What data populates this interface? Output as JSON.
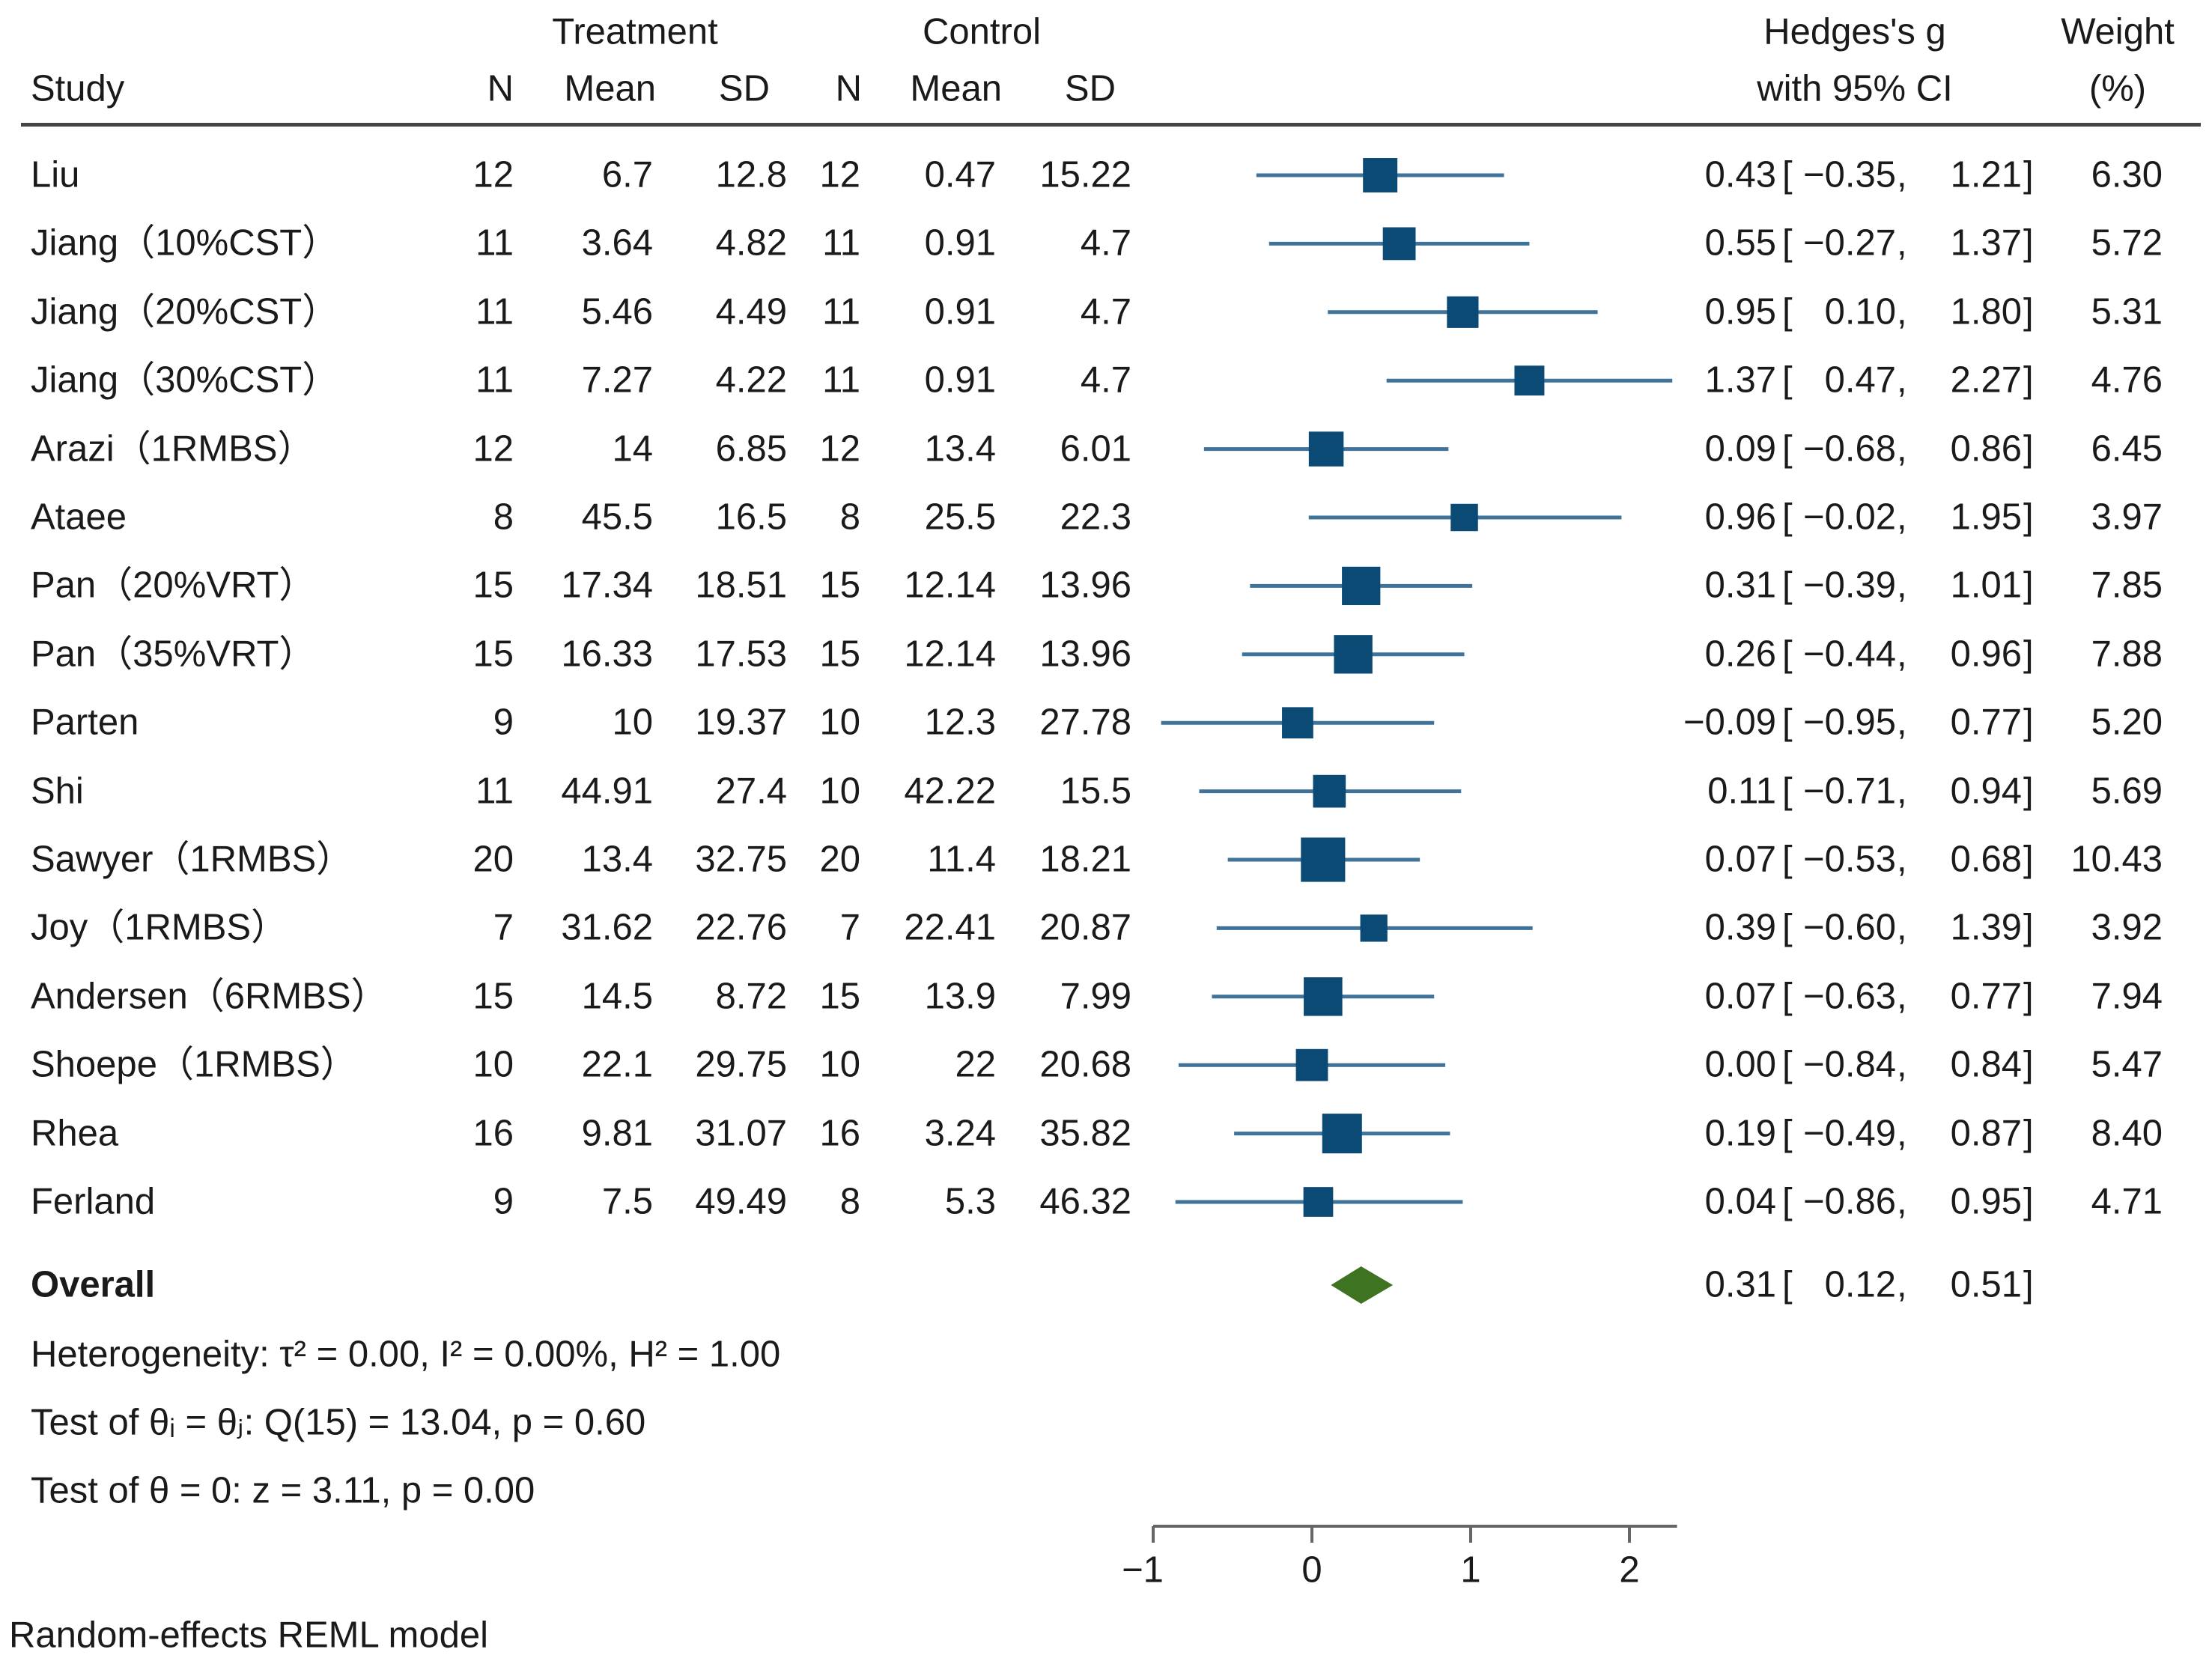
{
  "chart_data": {
    "type": "forest",
    "headers": {
      "treatment": "Treatment",
      "control": "Control",
      "study": "Study",
      "n": "N",
      "mean": "Mean",
      "sd": "SD",
      "effect_line1": "Hedges's g",
      "effect_line2": "with 95% CI",
      "weight_line1": "Weight",
      "weight_line2": "(%)"
    },
    "studies": [
      {
        "name": "Liu",
        "t_n": "12",
        "t_mean": "6.7",
        "t_sd": "12.8",
        "c_n": "12",
        "c_mean": "0.47",
        "c_sd": "15.22",
        "g": 0.43,
        "lo": -0.35,
        "hi": 1.21,
        "g_text": "0.43",
        "lo_text": "−0.35",
        "hi_text": "1.21",
        "weight": 6.3,
        "weight_text": "6.30"
      },
      {
        "name": "Jiang（10%CST）",
        "t_n": "11",
        "t_mean": "3.64",
        "t_sd": "4.82",
        "c_n": "11",
        "c_mean": "0.91",
        "c_sd": "4.7",
        "g": 0.55,
        "lo": -0.27,
        "hi": 1.37,
        "g_text": "0.55",
        "lo_text": "−0.27",
        "hi_text": "1.37",
        "weight": 5.72,
        "weight_text": "5.72"
      },
      {
        "name": "Jiang（20%CST）",
        "t_n": "11",
        "t_mean": "5.46",
        "t_sd": "4.49",
        "c_n": "11",
        "c_mean": "0.91",
        "c_sd": "4.7",
        "g": 0.95,
        "lo": 0.1,
        "hi": 1.8,
        "g_text": "0.95",
        "lo_text": "0.10",
        "hi_text": "1.80",
        "weight": 5.31,
        "weight_text": "5.31"
      },
      {
        "name": "Jiang（30%CST）",
        "t_n": "11",
        "t_mean": "7.27",
        "t_sd": "4.22",
        "c_n": "11",
        "c_mean": "0.91",
        "c_sd": "4.7",
        "g": 1.37,
        "lo": 0.47,
        "hi": 2.27,
        "g_text": "1.37",
        "lo_text": "0.47",
        "hi_text": "2.27",
        "weight": 4.76,
        "weight_text": "4.76"
      },
      {
        "name": "Arazi（1RMBS）",
        "t_n": "12",
        "t_mean": "14",
        "t_sd": "6.85",
        "c_n": "12",
        "c_mean": "13.4",
        "c_sd": "6.01",
        "g": 0.09,
        "lo": -0.68,
        "hi": 0.86,
        "g_text": "0.09",
        "lo_text": "−0.68",
        "hi_text": "0.86",
        "weight": 6.45,
        "weight_text": "6.45"
      },
      {
        "name": "Ataee",
        "t_n": "8",
        "t_mean": "45.5",
        "t_sd": "16.5",
        "c_n": "8",
        "c_mean": "25.5",
        "c_sd": "22.3",
        "g": 0.96,
        "lo": -0.02,
        "hi": 1.95,
        "g_text": "0.96",
        "lo_text": "−0.02",
        "hi_text": "1.95",
        "weight": 3.97,
        "weight_text": "3.97"
      },
      {
        "name": "Pan（20%VRT）",
        "t_n": "15",
        "t_mean": "17.34",
        "t_sd": "18.51",
        "c_n": "15",
        "c_mean": "12.14",
        "c_sd": "13.96",
        "g": 0.31,
        "lo": -0.39,
        "hi": 1.01,
        "g_text": "0.31",
        "lo_text": "−0.39",
        "hi_text": "1.01",
        "weight": 7.85,
        "weight_text": "7.85"
      },
      {
        "name": "Pan（35%VRT）",
        "t_n": "15",
        "t_mean": "16.33",
        "t_sd": "17.53",
        "c_n": "15",
        "c_mean": "12.14",
        "c_sd": "13.96",
        "g": 0.26,
        "lo": -0.44,
        "hi": 0.96,
        "g_text": "0.26",
        "lo_text": "−0.44",
        "hi_text": "0.96",
        "weight": 7.88,
        "weight_text": "7.88"
      },
      {
        "name": "Parten",
        "t_n": "9",
        "t_mean": "10",
        "t_sd": "19.37",
        "c_n": "10",
        "c_mean": "12.3",
        "c_sd": "27.78",
        "g": -0.09,
        "lo": -0.95,
        "hi": 0.77,
        "g_text": "−0.09",
        "lo_text": "−0.95",
        "hi_text": "0.77",
        "weight": 5.2,
        "weight_text": "5.20"
      },
      {
        "name": "Shi",
        "t_n": "11",
        "t_mean": "44.91",
        "t_sd": "27.4",
        "c_n": "10",
        "c_mean": "42.22",
        "c_sd": "15.5",
        "g": 0.11,
        "lo": -0.71,
        "hi": 0.94,
        "g_text": "0.11",
        "lo_text": "−0.71",
        "hi_text": "0.94",
        "weight": 5.69,
        "weight_text": "5.69"
      },
      {
        "name": "Sawyer（1RMBS）",
        "t_n": "20",
        "t_mean": "13.4",
        "t_sd": "32.75",
        "c_n": "20",
        "c_mean": "11.4",
        "c_sd": "18.21",
        "g": 0.07,
        "lo": -0.53,
        "hi": 0.68,
        "g_text": "0.07",
        "lo_text": "−0.53",
        "hi_text": "0.68",
        "weight": 10.43,
        "weight_text": "10.43"
      },
      {
        "name": "Joy（1RMBS）",
        "t_n": "7",
        "t_mean": "31.62",
        "t_sd": "22.76",
        "c_n": "7",
        "c_mean": "22.41",
        "c_sd": "20.87",
        "g": 0.39,
        "lo": -0.6,
        "hi": 1.39,
        "g_text": "0.39",
        "lo_text": "−0.60",
        "hi_text": "1.39",
        "weight": 3.92,
        "weight_text": "3.92"
      },
      {
        "name": "Andersen（6RMBS）",
        "t_n": "15",
        "t_mean": "14.5",
        "t_sd": "8.72",
        "c_n": "15",
        "c_mean": "13.9",
        "c_sd": "7.99",
        "g": 0.07,
        "lo": -0.63,
        "hi": 0.77,
        "g_text": "0.07",
        "lo_text": "−0.63",
        "hi_text": "0.77",
        "weight": 7.94,
        "weight_text": "7.94"
      },
      {
        "name": "Shoepe（1RMBS）",
        "t_n": "10",
        "t_mean": "22.1",
        "t_sd": "29.75",
        "c_n": "10",
        "c_mean": "22",
        "c_sd": "20.68",
        "g": 0.0,
        "lo": -0.84,
        "hi": 0.84,
        "g_text": "0.00",
        "lo_text": "−0.84",
        "hi_text": "0.84",
        "weight": 5.47,
        "weight_text": "5.47"
      },
      {
        "name": "Rhea",
        "t_n": "16",
        "t_mean": "9.81",
        "t_sd": "31.07",
        "c_n": "16",
        "c_mean": "3.24",
        "c_sd": "35.82",
        "g": 0.19,
        "lo": -0.49,
        "hi": 0.87,
        "g_text": "0.19",
        "lo_text": "−0.49",
        "hi_text": "0.87",
        "weight": 8.4,
        "weight_text": "8.40"
      },
      {
        "name": "Ferland",
        "t_n": "9",
        "t_mean": "7.5",
        "t_sd": "49.49",
        "c_n": "8",
        "c_mean": "5.3",
        "c_sd": "46.32",
        "g": 0.04,
        "lo": -0.86,
        "hi": 0.95,
        "g_text": "0.04",
        "lo_text": "−0.86",
        "hi_text": "0.95",
        "weight": 4.71,
        "weight_text": "4.71"
      }
    ],
    "overall": {
      "label": "Overall",
      "g": 0.31,
      "lo": 0.12,
      "hi": 0.51,
      "g_text": "0.31",
      "lo_text": "0.12",
      "hi_text": "0.51"
    },
    "stats": {
      "heterogeneity": "Heterogeneity: τ² = 0.00, I² = 0.00%, H² = 1.00",
      "test_homogeneity": "Test of θᵢ = θⱼ: Q(15) = 13.04, p = 0.60",
      "test_effect": "Test of θ = 0: z = 3.11, p = 0.00"
    },
    "x_axis": {
      "range": [
        -1,
        2.3
      ],
      "ticks": [
        -1,
        0,
        1,
        2
      ],
      "tick_labels": [
        "−1",
        "0",
        "1",
        "2"
      ]
    },
    "footnote": "Random-effects REML model",
    "colors": {
      "square": "#0c4a76",
      "ci_line": "#3f7399",
      "diamond": "#3e7322",
      "text": "#1a1a1a"
    }
  }
}
